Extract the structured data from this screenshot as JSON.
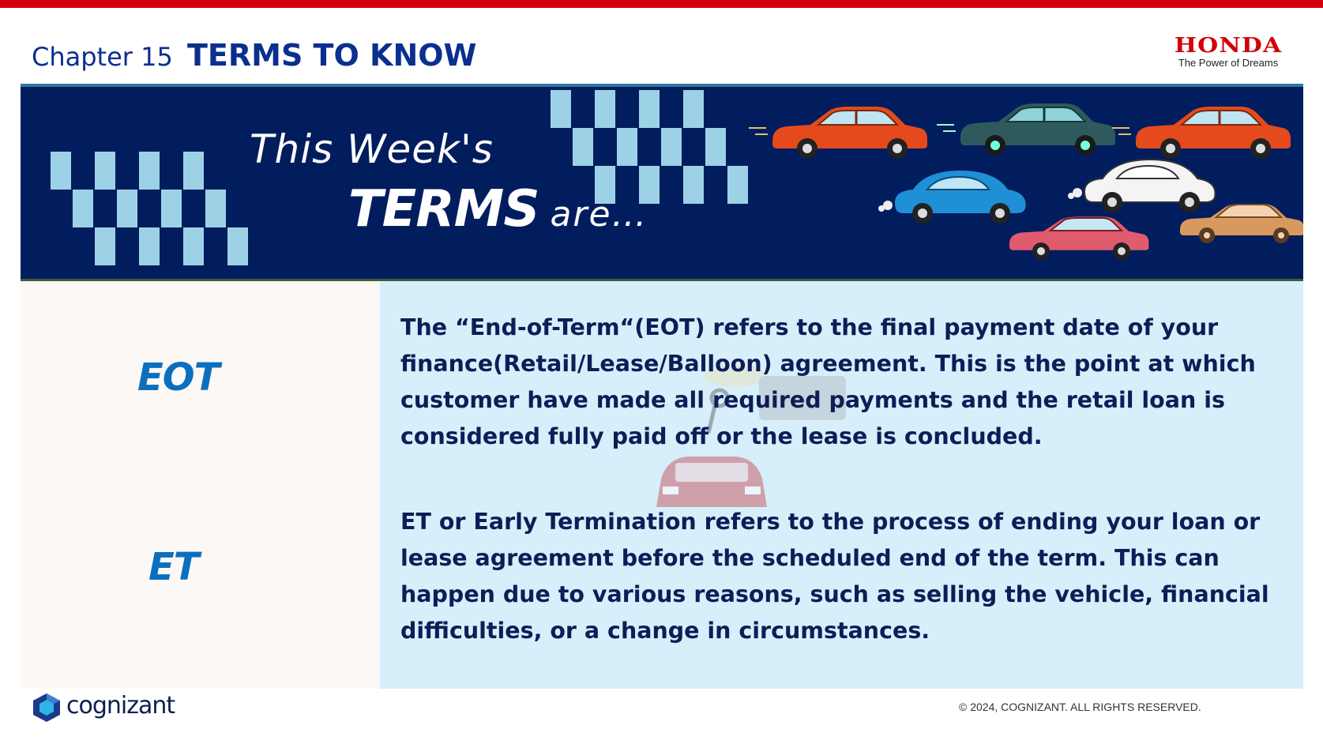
{
  "header": {
    "chapter": "Chapter 15",
    "title": "TERMS TO KNOW"
  },
  "brand": {
    "name": "HONDA",
    "tagline": "The Power of Dreams"
  },
  "banner": {
    "line1": "This Week's",
    "terms": "TERMS",
    "are": "are…"
  },
  "terms": [
    {
      "term": "EOT",
      "definition": "The “End-of-Term“(EOT) refers to the final payment date of your finance(Retail/Lease/Balloon) agreement. This is the point at which customer have made all required payments and the retail loan is considered fully paid off or the lease is concluded."
    },
    {
      "term": "ET",
      "definition": "ET or Early Termination refers to the process of ending your loan or lease agreement before the scheduled end of the term. This can happen due to various reasons, such as selling the vehicle, financial difficulties, or a change in circumstances."
    }
  ],
  "footer": {
    "company": "cognizant",
    "copyright": "© 2024, COGNIZANT. ALL RIGHTS RESERVED."
  },
  "colors": {
    "accent_red": "#d0000c",
    "navy": "#021d5e",
    "title_blue": "#0b2f8f",
    "term_blue": "#0b6fc0",
    "checker": "#9dd2e6"
  }
}
